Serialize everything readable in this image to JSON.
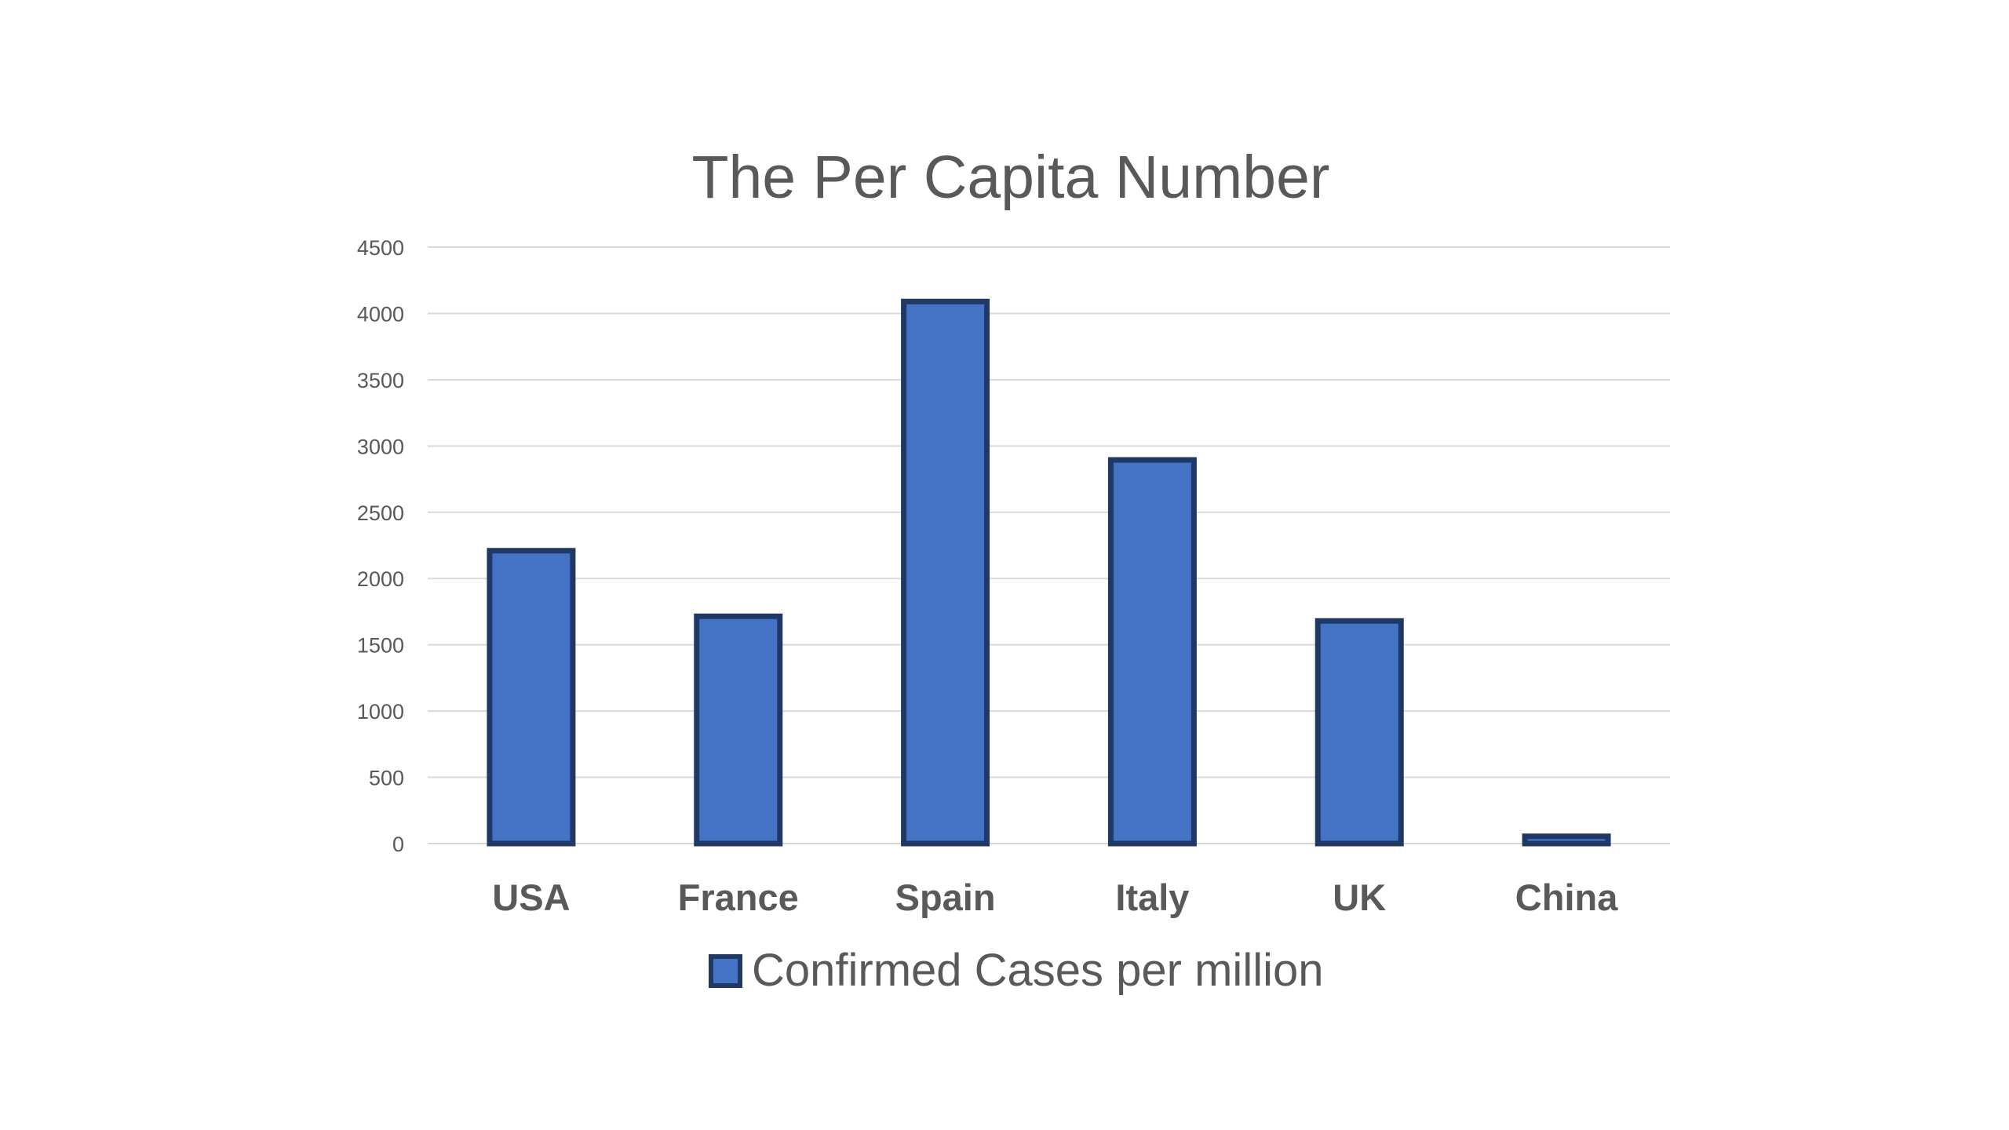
{
  "chart_data": {
    "type": "bar",
    "title": "The Per Capita Number",
    "xlabel": "",
    "ylabel": "",
    "categories": [
      "USA",
      "France",
      "Spain",
      "Italy",
      "UK",
      "China"
    ],
    "series": [
      {
        "name": "Confirmed Cases per million",
        "values": [
          2210,
          1715,
          4090,
          2895,
          1680,
          55
        ]
      }
    ],
    "ylim": [
      0,
      4500
    ],
    "yticks": [
      "0",
      "500",
      "1000",
      "1500",
      "2000",
      "2500",
      "3000",
      "3500",
      "4000",
      "4500"
    ],
    "grid": true,
    "legend_position": "bottom",
    "colors": {
      "bar_fill": "#4472c4",
      "bar_stroke": "#1f3864",
      "text": "#595959",
      "grid": "#d9d9d9"
    }
  }
}
